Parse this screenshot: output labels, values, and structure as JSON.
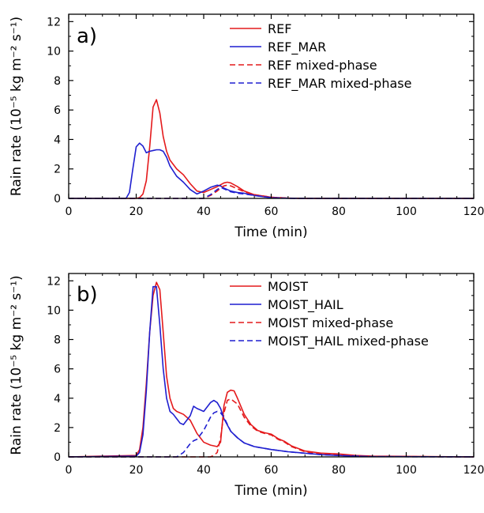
{
  "chart_data": [
    {
      "type": "line",
      "panel_label": "a)",
      "xlabel": "Time (min)",
      "ylabel": "Rain rate (10⁻⁵ kg m⁻² s⁻¹)",
      "xlim": [
        0,
        120
      ],
      "ylim": [
        0,
        12.5
      ],
      "xticks": [
        0,
        20,
        40,
        60,
        80,
        100,
        120
      ],
      "yticks": [
        0,
        2,
        4,
        6,
        8,
        10,
        12
      ],
      "legend_position": "top-right",
      "series": [
        {
          "name": "REF",
          "color": "#e41a1c",
          "dash": "solid",
          "x": [
            0,
            20,
            21,
            22,
            23,
            24,
            25,
            26,
            27,
            28,
            29,
            30,
            32,
            34,
            36,
            38,
            40,
            42,
            44,
            46,
            47,
            48,
            50,
            52,
            55,
            60,
            65,
            70,
            120
          ],
          "y": [
            0,
            0,
            0.05,
            0.3,
            1.2,
            3.5,
            6.2,
            6.7,
            5.8,
            4.2,
            3.2,
            2.6,
            2.0,
            1.6,
            1.0,
            0.5,
            0.4,
            0.6,
            0.8,
            1.05,
            1.1,
            1.05,
            0.8,
            0.5,
            0.25,
            0.08,
            0.02,
            0,
            0
          ]
        },
        {
          "name": "REF_MAR",
          "color": "#1f1fd0",
          "dash": "solid",
          "x": [
            0,
            17,
            18,
            19,
            20,
            21,
            22,
            23,
            24,
            25,
            26,
            27,
            28,
            29,
            30,
            32,
            34,
            36,
            38,
            40,
            42,
            44,
            45,
            46,
            48,
            50,
            52,
            55,
            60,
            65,
            70,
            120
          ],
          "y": [
            0,
            0,
            0.4,
            2.0,
            3.5,
            3.75,
            3.55,
            3.1,
            3.2,
            3.25,
            3.3,
            3.3,
            3.2,
            2.8,
            2.2,
            1.5,
            1.1,
            0.6,
            0.3,
            0.5,
            0.75,
            0.9,
            0.85,
            0.7,
            0.5,
            0.4,
            0.35,
            0.2,
            0.05,
            0.01,
            0,
            0
          ]
        },
        {
          "name": "REF mixed-phase",
          "color": "#e41a1c",
          "dash": "dashed",
          "x": [
            0,
            40,
            42,
            44,
            45,
            46,
            47,
            48,
            50,
            52,
            55,
            60,
            65,
            70,
            120
          ],
          "y": [
            0,
            0,
            0.2,
            0.5,
            0.7,
            0.85,
            0.9,
            0.85,
            0.65,
            0.45,
            0.25,
            0.08,
            0.02,
            0,
            0
          ]
        },
        {
          "name": "REF_MAR mixed-phase",
          "color": "#1f1fd0",
          "dash": "dashed",
          "x": [
            0,
            40,
            42,
            44,
            45,
            46,
            48,
            50,
            52,
            55,
            60,
            65,
            70,
            120
          ],
          "y": [
            0,
            0,
            0.25,
            0.6,
            0.75,
            0.65,
            0.45,
            0.35,
            0.3,
            0.2,
            0.05,
            0.01,
            0,
            0
          ]
        }
      ]
    },
    {
      "type": "line",
      "panel_label": "b)",
      "xlabel": "Time (min)",
      "ylabel": "Rain rate (10⁻⁵ kg m⁻² s⁻¹)",
      "xlim": [
        0,
        120
      ],
      "ylim": [
        0,
        12.5
      ],
      "xticks": [
        0,
        20,
        40,
        60,
        80,
        100,
        120
      ],
      "yticks": [
        0,
        2,
        4,
        6,
        8,
        10,
        12
      ],
      "legend_position": "top-right",
      "series": [
        {
          "name": "MOIST",
          "color": "#e41a1c",
          "dash": "solid",
          "x": [
            0,
            20,
            21,
            22,
            23,
            24,
            25,
            26,
            27,
            28,
            29,
            30,
            31,
            32,
            34,
            36,
            38,
            40,
            42,
            44,
            45,
            46,
            47,
            48,
            49,
            50,
            52,
            54,
            56,
            58,
            60,
            62,
            64,
            66,
            70,
            75,
            80,
            85,
            90,
            120
          ],
          "y": [
            0,
            0.1,
            0.5,
            2.0,
            5.0,
            8.5,
            11.0,
            11.9,
            11.4,
            8.5,
            5.5,
            4.0,
            3.3,
            3.1,
            2.9,
            2.5,
            1.6,
            1.0,
            0.8,
            0.7,
            1.0,
            3.5,
            4.4,
            4.55,
            4.5,
            4.0,
            2.9,
            2.2,
            1.8,
            1.65,
            1.55,
            1.25,
            1.05,
            0.75,
            0.4,
            0.25,
            0.2,
            0.1,
            0.05,
            0
          ]
        },
        {
          "name": "MOIST_HAIL",
          "color": "#1f1fd0",
          "dash": "solid",
          "x": [
            0,
            20,
            21,
            22,
            23,
            24,
            25,
            26,
            27,
            28,
            29,
            30,
            31,
            32,
            33,
            34,
            36,
            37,
            38,
            40,
            42,
            43,
            44,
            45,
            46,
            48,
            50,
            52,
            55,
            60,
            65,
            70,
            75,
            80,
            85,
            90,
            120
          ],
          "y": [
            0,
            0.05,
            0.3,
            1.5,
            4.5,
            8.5,
            11.6,
            11.6,
            9.0,
            6.0,
            4.0,
            3.1,
            2.9,
            2.6,
            2.3,
            2.2,
            2.8,
            3.45,
            3.3,
            3.1,
            3.7,
            3.85,
            3.7,
            3.3,
            2.6,
            1.75,
            1.3,
            0.95,
            0.7,
            0.5,
            0.35,
            0.25,
            0.15,
            0.1,
            0.05,
            0.02,
            0
          ]
        },
        {
          "name": "MOIST mixed-phase",
          "color": "#e41a1c",
          "dash": "dashed",
          "x": [
            0,
            40,
            42,
            43,
            44,
            45,
            46,
            47,
            48,
            50,
            52,
            54,
            56,
            58,
            60,
            62,
            64,
            66,
            70,
            75,
            80,
            85,
            90,
            120
          ],
          "y": [
            0,
            0,
            0,
            0.1,
            0.3,
            1.3,
            3.0,
            3.85,
            3.95,
            3.6,
            2.7,
            2.1,
            1.75,
            1.6,
            1.5,
            1.2,
            1.0,
            0.7,
            0.35,
            0.2,
            0.15,
            0.08,
            0.03,
            0
          ]
        },
        {
          "name": "MOIST_HAIL mixed-phase",
          "color": "#1f1fd0",
          "dash": "dashed",
          "x": [
            0,
            32,
            34,
            36,
            37,
            38,
            40,
            42,
            43,
            44,
            45,
            46,
            48,
            50,
            52,
            55,
            60,
            65,
            70,
            75,
            80,
            85,
            90,
            120
          ],
          "y": [
            0,
            0,
            0.3,
            0.9,
            1.1,
            1.2,
            1.8,
            2.7,
            3.0,
            3.1,
            3.0,
            2.7,
            1.75,
            1.3,
            0.95,
            0.7,
            0.5,
            0.35,
            0.25,
            0.15,
            0.1,
            0.05,
            0.02,
            0
          ]
        }
      ]
    }
  ]
}
